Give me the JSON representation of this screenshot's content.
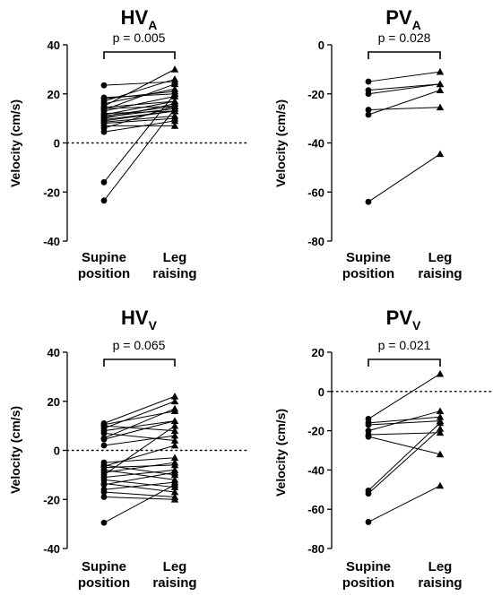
{
  "chart_data": [
    {
      "type": "paired-scatter",
      "title_main": "HV",
      "title_sub": "A",
      "ylabel": "Velocity (cm/s)",
      "categories": [
        [
          "Supine",
          "position"
        ],
        [
          "Leg",
          "raising"
        ]
      ],
      "ylim": [
        -40,
        40
      ],
      "yticks": [
        "40",
        "20",
        "0",
        "-20",
        "-40"
      ],
      "zero_line": true,
      "p_label": "p = 0.005",
      "pairs": [
        [
          23.5,
          25
        ],
        [
          18.5,
          20
        ],
        [
          18,
          21
        ],
        [
          17,
          26
        ],
        [
          16,
          22
        ],
        [
          15,
          30
        ],
        [
          14.5,
          17
        ],
        [
          14,
          15
        ],
        [
          13.5,
          24
        ],
        [
          13,
          19
        ],
        [
          12,
          13
        ],
        [
          11.5,
          17
        ],
        [
          11,
          15
        ],
        [
          10.5,
          14
        ],
        [
          10,
          16
        ],
        [
          9.5,
          13
        ],
        [
          9,
          13
        ],
        [
          8.5,
          11
        ],
        [
          8,
          10
        ],
        [
          7,
          7
        ],
        [
          6,
          15
        ],
        [
          4.5,
          9
        ],
        [
          -16,
          20
        ],
        [
          -23.5,
          14
        ]
      ]
    },
    {
      "type": "paired-scatter",
      "title_main": "PV",
      "title_sub": "A",
      "ylabel": "Velocity (cm/s)",
      "categories": [
        [
          "Supine",
          "position"
        ],
        [
          "Leg",
          "raising"
        ]
      ],
      "ylim": [
        -80,
        0
      ],
      "yticks": [
        "0",
        "-20",
        "-40",
        "-60",
        "-80"
      ],
      "zero_line": false,
      "p_label": "p = 0.028",
      "pairs": [
        [
          -15,
          -11
        ],
        [
          -18.5,
          -16
        ],
        [
          -20,
          -16
        ],
        [
          -26.5,
          -25.5
        ],
        [
          -28.5,
          -18.5
        ],
        [
          -64,
          -44.5
        ]
      ]
    },
    {
      "type": "paired-scatter",
      "title_main": "HV",
      "title_sub": "V",
      "ylabel": "Velocity (cm/s)",
      "categories": [
        [
          "Supine",
          "position"
        ],
        [
          "Leg",
          "raising"
        ]
      ],
      "ylim": [
        -40,
        40
      ],
      "yticks": [
        "40",
        "20",
        "0",
        "-20",
        "-40"
      ],
      "zero_line": true,
      "p_label": "p = 0.065",
      "pairs": [
        [
          11,
          22
        ],
        [
          10.5,
          16
        ],
        [
          10,
          8
        ],
        [
          9,
          20
        ],
        [
          8,
          12
        ],
        [
          7,
          4
        ],
        [
          5,
          17
        ],
        [
          4.5,
          12
        ],
        [
          2,
          6
        ],
        [
          -5,
          -3
        ],
        [
          -6,
          -10
        ],
        [
          -6.5,
          2
        ],
        [
          -7,
          -6
        ],
        [
          -8,
          -12
        ],
        [
          -9,
          -5
        ],
        [
          -10,
          10
        ],
        [
          -11,
          -8
        ],
        [
          -12,
          -15
        ],
        [
          -13.5,
          -17
        ],
        [
          -14,
          -9
        ],
        [
          -16,
          -13
        ],
        [
          -17,
          -19
        ],
        [
          -19,
          -20
        ],
        [
          -29.5,
          -14
        ]
      ]
    },
    {
      "type": "paired-scatter",
      "title_main": "PV",
      "title_sub": "V",
      "ylabel": "Velocity (cm/s)",
      "categories": [
        [
          "Supine",
          "position"
        ],
        [
          "Leg",
          "raising"
        ]
      ],
      "ylim": [
        -80,
        20
      ],
      "yticks": [
        "20",
        "0",
        "-20",
        "-40",
        "-60",
        "-80"
      ],
      "zero_line": true,
      "p_label": "p = 0.021",
      "pairs": [
        [
          -14,
          9
        ],
        [
          -16,
          -13
        ],
        [
          -17,
          -15
        ],
        [
          -20,
          -10
        ],
        [
          -22,
          -21
        ],
        [
          -23,
          -32
        ],
        [
          -50.5,
          -16
        ],
        [
          -52,
          -19
        ],
        [
          -66.5,
          -48
        ]
      ]
    }
  ]
}
